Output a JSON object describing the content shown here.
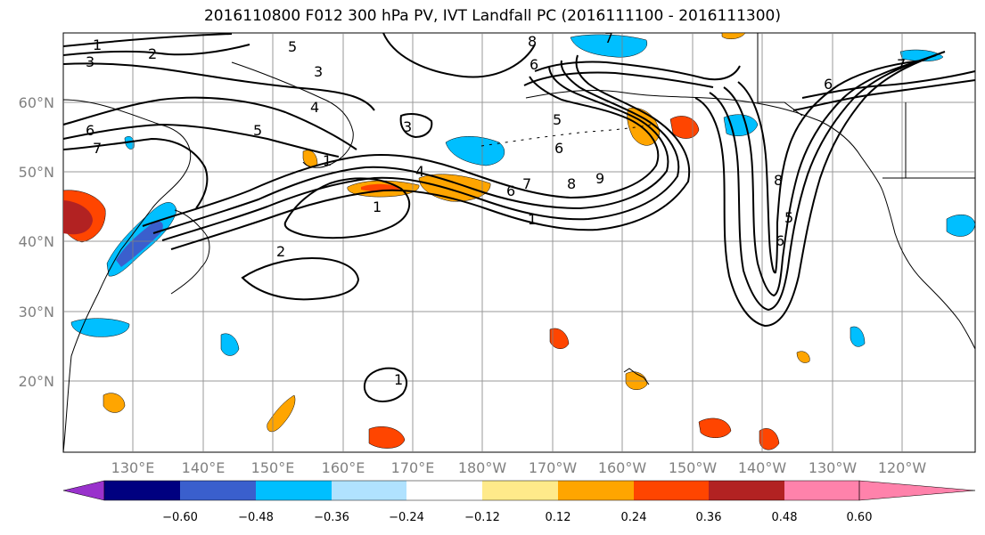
{
  "title": "2016110800 F012 300 hPa PV, IVT Landfall PC (2016111100 - 2016111300)",
  "latitude_labels": [
    "60°N",
    "50°N",
    "40°N",
    "30°N",
    "20°N"
  ],
  "longitude_labels": [
    "130°E",
    "140°E",
    "150°E",
    "160°E",
    "170°E",
    "180°W",
    "170°W",
    "160°W",
    "150°W",
    "140°W",
    "130°W",
    "120°W"
  ],
  "colorbar": {
    "tick_labels": [
      "−0.60",
      "−0.48",
      "−0.36",
      "−0.24",
      "−0.12",
      "0.12",
      "0.24",
      "0.36",
      "0.48",
      "0.60"
    ],
    "colors": [
      "#9932cc",
      "#000080",
      "#3a5fcd",
      "#00bfff",
      "#b0e2ff",
      "#ffffff",
      "#ffea8a",
      "#ffa500",
      "#ff4500",
      "#b22222",
      "#ff82ab"
    ]
  },
  "contour_labels": [
    "1",
    "2",
    "3",
    "5",
    "6",
    "7",
    "3",
    "4",
    "5",
    "3",
    "8",
    "7",
    "6",
    "1",
    "2",
    "4",
    "5",
    "6",
    "7",
    "1",
    "6",
    "8",
    "9",
    "7",
    "6",
    "8",
    "5",
    "6",
    "1",
    "1"
  ],
  "colors": {
    "land_outline": "#000000",
    "grid": "#808080",
    "contour": "#000000"
  }
}
